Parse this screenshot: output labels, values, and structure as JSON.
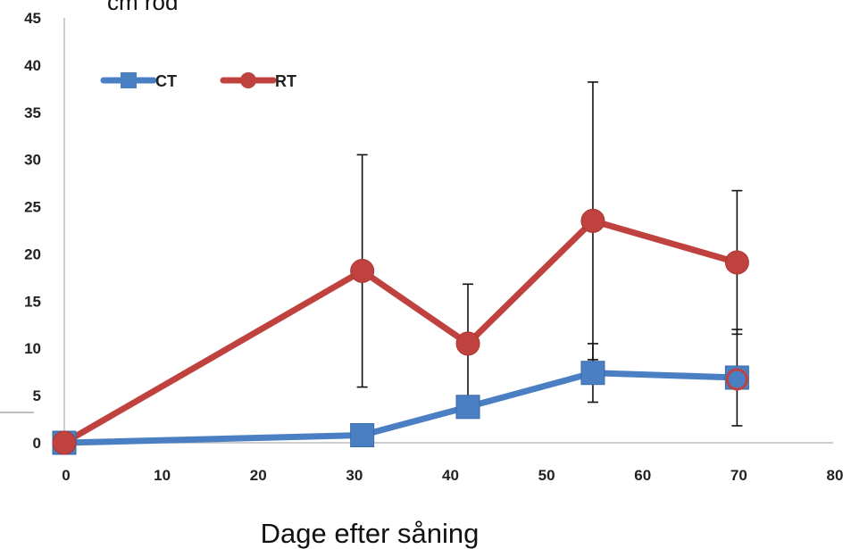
{
  "chart_data": {
    "type": "line",
    "title": "",
    "ylabel": "cm rod",
    "xlabel": "Dage efter såning",
    "xlim": [
      0,
      80
    ],
    "ylim": [
      0,
      45
    ],
    "x_ticks": [
      0,
      10,
      20,
      30,
      40,
      50,
      60,
      70,
      80
    ],
    "y_ticks": [
      0,
      5,
      10,
      15,
      20,
      25,
      30,
      35,
      40,
      45
    ],
    "grid": false,
    "legend_position": "top-left",
    "series": [
      {
        "name": "CT",
        "color": "#4a7fc4",
        "marker": "square",
        "x": [
          0,
          31,
          42,
          55,
          70
        ],
        "y": [
          0,
          0.8,
          3.8,
          7.4,
          6.9
        ],
        "error": [
          0,
          0,
          0,
          3.1,
          5.1
        ]
      },
      {
        "name": "RT",
        "color": "#c0423f",
        "marker": "circle",
        "x": [
          0,
          31,
          42,
          55,
          70
        ],
        "y": [
          0,
          18.2,
          10.5,
          23.5,
          19.1
        ],
        "error": [
          0,
          12.3,
          6.3,
          14.7,
          7.6
        ]
      }
    ]
  }
}
